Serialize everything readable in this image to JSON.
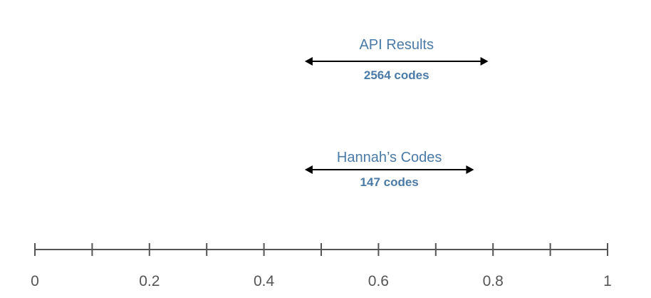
{
  "chart_data": {
    "type": "range",
    "title": "",
    "xlabel": "",
    "ylabel": "",
    "xlim": [
      0,
      1
    ],
    "grid": false,
    "ticks": [
      {
        "value": 0,
        "label": "0"
      },
      {
        "value": 0.1,
        "label": ""
      },
      {
        "value": 0.2,
        "label": "0.2"
      },
      {
        "value": 0.3,
        "label": ""
      },
      {
        "value": 0.4,
        "label": "0.4"
      },
      {
        "value": 0.5,
        "label": ""
      },
      {
        "value": 0.6,
        "label": "0.6"
      },
      {
        "value": 0.7,
        "label": ""
      },
      {
        "value": 0.8,
        "label": "0.8"
      },
      {
        "value": 0.9,
        "label": ""
      },
      {
        "value": 1,
        "label": "1"
      }
    ],
    "series": [
      {
        "name": "API Results",
        "count_label": "2564 codes",
        "low": 0.475,
        "high": 0.788
      },
      {
        "name": "Hannah’s Codes",
        "count_label": "147 codes",
        "low": 0.475,
        "high": 0.763
      }
    ]
  },
  "colors": {
    "label": "#4a7aa7",
    "axis": "#555555",
    "tick_label": "#555555",
    "range_line": "#000000"
  }
}
